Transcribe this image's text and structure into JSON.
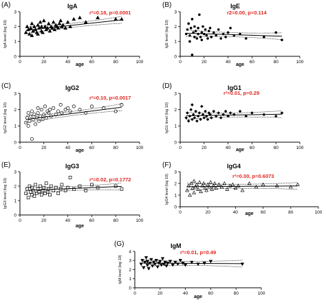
{
  "chart_data": [
    {
      "type": "scatter",
      "letter": "(A)",
      "title": "IgA",
      "stat_text": "r²=0.18, p=0.0001",
      "xlabel": "age",
      "ylabel": "IgA level (log 10)",
      "xlim": [
        0,
        100
      ],
      "ylim": [
        0,
        3
      ],
      "xticks": [
        0,
        20,
        40,
        60,
        80,
        100
      ],
      "yticks": [
        0,
        1,
        2,
        3
      ],
      "marker": "triangle-up",
      "x": [
        5,
        6,
        7,
        8,
        9,
        10,
        10,
        11,
        12,
        13,
        14,
        15,
        15,
        16,
        17,
        18,
        18,
        19,
        20,
        21,
        22,
        23,
        24,
        25,
        26,
        27,
        28,
        29,
        30,
        31,
        32,
        33,
        34,
        35,
        36,
        38,
        40,
        42,
        45,
        50,
        55,
        65,
        80,
        85
      ],
      "y": [
        1.6,
        2.0,
        1.8,
        1.5,
        1.9,
        2.2,
        1.4,
        1.7,
        2.0,
        1.8,
        1.6,
        2.1,
        1.5,
        1.9,
        2.3,
        1.7,
        2.0,
        1.6,
        2.4,
        2.0,
        1.8,
        1.9,
        2.2,
        1.7,
        2.0,
        1.9,
        2.3,
        1.8,
        2.1,
        2.0,
        1.9,
        2.2,
        2.4,
        2.0,
        2.1,
        1.9,
        2.3,
        2.0,
        2.5,
        2.6,
        2.3,
        2.6,
        2.5,
        2.5
      ],
      "fit": {
        "x": [
          5,
          85
        ],
        "y": [
          1.75,
          2.45
        ]
      }
    },
    {
      "type": "scatter",
      "letter": "(B)",
      "title": "IgE",
      "stat_text": "r2=0.00, p=0.114",
      "xlabel": "age",
      "ylabel": "IgE level (log 10)",
      "xlim": [
        0,
        100
      ],
      "ylim": [
        0,
        3
      ],
      "xticks": [
        0,
        20,
        40,
        60,
        80,
        100
      ],
      "yticks": [
        0,
        1,
        2,
        3
      ],
      "marker": "circle-filled",
      "x": [
        5,
        6,
        7,
        8,
        8,
        9,
        10,
        10,
        11,
        12,
        12,
        13,
        14,
        15,
        15,
        16,
        17,
        18,
        18,
        19,
        20,
        21,
        22,
        23,
        24,
        25,
        26,
        28,
        30,
        32,
        34,
        36,
        38,
        40,
        42,
        45,
        50,
        55,
        70,
        80,
        85
      ],
      "y": [
        1.5,
        1.8,
        2.2,
        1.4,
        1.0,
        1.9,
        2.5,
        0.1,
        1.6,
        1.3,
        2.0,
        1.7,
        1.2,
        1.9,
        1.5,
        2.8,
        1.3,
        1.6,
        1.1,
        2.0,
        1.5,
        1.8,
        1.4,
        1.2,
        1.7,
        1.9,
        1.3,
        1.6,
        1.4,
        1.8,
        1.2,
        1.5,
        1.3,
        1.6,
        1.9,
        1.4,
        1.5,
        1.2,
        1.3,
        1.6,
        1.1
      ],
      "fit": {
        "x": [
          5,
          85
        ],
        "y": [
          1.55,
          1.35
        ]
      }
    },
    {
      "type": "scatter",
      "letter": "(C)",
      "title": "IgG2",
      "stat_text": "r²=0.10, p=0.0017",
      "xlabel": "age",
      "ylabel": "IgG2 level (log 10)",
      "xlim": [
        0,
        100
      ],
      "ylim": [
        0,
        3
      ],
      "xticks": [
        0,
        20,
        40,
        60,
        80,
        100
      ],
      "yticks": [
        0,
        1,
        2,
        3
      ],
      "marker": "circle-open",
      "x": [
        5,
        6,
        7,
        7,
        8,
        9,
        10,
        10,
        11,
        12,
        13,
        14,
        15,
        15,
        16,
        17,
        18,
        19,
        20,
        21,
        22,
        23,
        24,
        25,
        26,
        28,
        30,
        32,
        34,
        35,
        38,
        40,
        42,
        45,
        50,
        55,
        60,
        70,
        80,
        85
      ],
      "y": [
        1.2,
        1.5,
        1.0,
        1.8,
        1.3,
        1.6,
        1.9,
        0.2,
        1.4,
        1.7,
        1.1,
        1.5,
        1.8,
        2.1,
        1.3,
        1.6,
        2.0,
        1.4,
        1.7,
        2.2,
        1.5,
        1.9,
        1.8,
        2.0,
        1.6,
        2.1,
        1.7,
        1.9,
        2.3,
        1.8,
        2.0,
        2.1,
        1.9,
        2.2,
        2.0,
        1.8,
        2.2,
        2.1,
        1.9,
        2.3
      ],
      "fit": {
        "x": [
          5,
          85
        ],
        "y": [
          1.4,
          2.15
        ]
      }
    },
    {
      "type": "scatter",
      "letter": "(D)",
      "title": "IgG1",
      "stat_text": "r²=0.01, p=0.29",
      "xlabel": "age",
      "ylabel": "IgG1 level (log 10)",
      "xlim": [
        0,
        100
      ],
      "ylim": [
        0,
        3
      ],
      "xticks": [
        0,
        20,
        40,
        60,
        80,
        100
      ],
      "yticks": [
        0,
        1,
        2,
        3
      ],
      "marker": "diamond",
      "x": [
        5,
        6,
        7,
        8,
        9,
        10,
        10,
        11,
        12,
        13,
        14,
        15,
        16,
        17,
        18,
        19,
        20,
        21,
        22,
        23,
        24,
        25,
        26,
        28,
        30,
        32,
        34,
        36,
        38,
        40,
        42,
        45,
        50,
        55,
        60,
        70,
        80,
        85
      ],
      "y": [
        1.5,
        1.8,
        1.3,
        1.6,
        2.0,
        1.4,
        2.3,
        1.7,
        1.5,
        1.9,
        1.3,
        1.6,
        1.8,
        1.4,
        2.2,
        1.7,
        1.5,
        1.9,
        1.6,
        1.4,
        1.8,
        1.7,
        1.5,
        1.9,
        1.6,
        1.8,
        1.5,
        1.7,
        1.9,
        1.6,
        1.8,
        1.7,
        1.9,
        1.6,
        1.8,
        1.7,
        1.6,
        1.8
      ],
      "fit": {
        "x": [
          5,
          85
        ],
        "y": [
          1.62,
          1.72
        ]
      }
    },
    {
      "type": "scatter",
      "letter": "(E)",
      "title": "IgG3",
      "stat_text": "r²=0.02, p=0.1772",
      "xlabel": "age",
      "ylabel": "IgG3 level (log 10)",
      "xlim": [
        0,
        100
      ],
      "ylim": [
        0,
        3
      ],
      "xticks": [
        0,
        20,
        40,
        60,
        80,
        100
      ],
      "yticks": [
        0,
        1,
        2,
        3
      ],
      "marker": "square-open",
      "x": [
        5,
        6,
        7,
        8,
        9,
        10,
        10,
        11,
        12,
        13,
        14,
        15,
        16,
        17,
        18,
        19,
        20,
        21,
        22,
        23,
        24,
        25,
        26,
        28,
        30,
        32,
        34,
        35,
        38,
        40,
        42,
        45,
        50,
        55,
        60,
        65,
        80,
        85
      ],
      "y": [
        1.5,
        1.8,
        1.2,
        2.0,
        1.6,
        1.4,
        1.9,
        1.7,
        1.3,
        2.1,
        1.5,
        1.8,
        1.6,
        2.0,
        1.4,
        1.7,
        1.9,
        1.5,
        2.2,
        1.6,
        1.8,
        1.4,
        2.0,
        1.7,
        1.9,
        1.5,
        1.8,
        2.1,
        1.7,
        1.9,
        2.6,
        1.8,
        2.0,
        1.7,
        2.1,
        1.9,
        2.0,
        1.8
      ],
      "fit": {
        "x": [
          5,
          85
        ],
        "y": [
          1.7,
          1.98
        ]
      }
    },
    {
      "type": "scatter",
      "letter": "(F)",
      "title": "IgG4",
      "stat_text": "r²=0.00, p=0.6073",
      "xlabel": "age",
      "ylabel": "IgG4 level (log 10)",
      "xlim": [
        0,
        100
      ],
      "ylim": [
        0,
        3
      ],
      "xticks": [
        0,
        20,
        40,
        60,
        80,
        100
      ],
      "yticks": [
        0,
        1,
        2,
        3
      ],
      "marker": "triangle-open",
      "x": [
        5,
        6,
        7,
        8,
        9,
        10,
        10,
        11,
        12,
        13,
        14,
        15,
        16,
        17,
        18,
        19,
        20,
        21,
        22,
        23,
        24,
        25,
        26,
        28,
        30,
        32,
        34,
        36,
        38,
        40,
        42,
        45,
        50,
        55,
        60,
        70,
        80,
        85
      ],
      "y": [
        1.4,
        1.8,
        1.0,
        2.0,
        1.6,
        2.2,
        1.2,
        1.7,
        1.9,
        1.5,
        2.1,
        1.3,
        1.8,
        2.0,
        1.6,
        1.4,
        1.9,
        1.7,
        2.1,
        1.5,
        1.8,
        2.0,
        1.6,
        1.9,
        1.7,
        2.0,
        1.5,
        1.8,
        1.9,
        1.6,
        1.8,
        1.4,
        2.0,
        1.7,
        1.9,
        1.8,
        1.7,
        1.9
      ],
      "fit": {
        "x": [
          5,
          85
        ],
        "y": [
          1.72,
          1.78
        ]
      }
    },
    {
      "type": "scatter",
      "letter": "(G)",
      "title": "IgM",
      "stat_text": "r²=0.01, p=0.49",
      "xlabel": "age",
      "ylabel": "IgM level (log 10)",
      "xlim": [
        0,
        100
      ],
      "ylim": [
        0,
        4
      ],
      "xticks": [
        0,
        20,
        40,
        60,
        80,
        100
      ],
      "yticks": [
        0,
        1,
        2,
        3,
        4
      ],
      "marker": "triangle-down",
      "x": [
        5,
        6,
        7,
        8,
        9,
        10,
        10,
        11,
        12,
        13,
        14,
        15,
        16,
        17,
        18,
        19,
        20,
        21,
        22,
        23,
        24,
        25,
        26,
        28,
        30,
        32,
        34,
        36,
        38,
        40,
        45,
        50,
        55,
        60,
        85
      ],
      "y": [
        2.6,
        3.0,
        2.2,
        2.8,
        3.3,
        2.5,
        2.9,
        2.1,
        2.7,
        3.1,
        2.4,
        2.8,
        2.6,
        3.0,
        2.3,
        2.7,
        2.9,
        2.5,
        3.2,
        2.6,
        2.8,
        2.4,
        2.7,
        2.9,
        2.5,
        2.8,
        2.6,
        3.0,
        2.7,
        2.5,
        2.8,
        2.6,
        2.7,
        2.9,
        2.6
      ],
      "fit": {
        "x": [
          5,
          85
        ],
        "y": [
          2.72,
          2.65
        ]
      }
    }
  ]
}
